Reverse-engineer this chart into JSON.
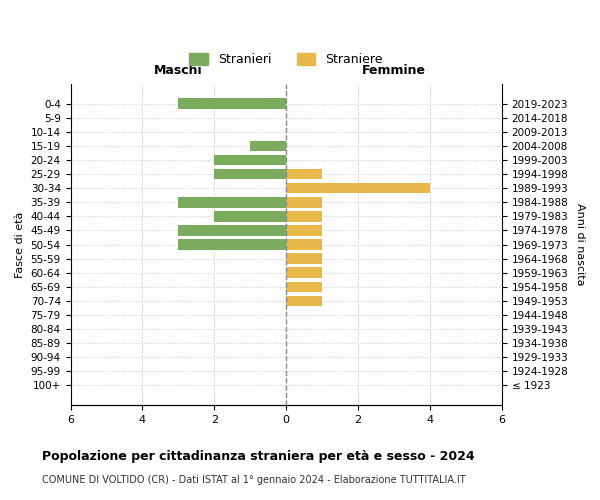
{
  "age_groups": [
    "100+",
    "95-99",
    "90-94",
    "85-89",
    "80-84",
    "75-79",
    "70-74",
    "65-69",
    "60-64",
    "55-59",
    "50-54",
    "45-49",
    "40-44",
    "35-39",
    "30-34",
    "25-29",
    "20-24",
    "15-19",
    "10-14",
    "5-9",
    "0-4"
  ],
  "birth_years": [
    "≤ 1923",
    "1924-1928",
    "1929-1933",
    "1934-1938",
    "1939-1943",
    "1944-1948",
    "1949-1953",
    "1954-1958",
    "1959-1963",
    "1964-1968",
    "1969-1973",
    "1974-1978",
    "1979-1983",
    "1984-1988",
    "1989-1993",
    "1994-1998",
    "1999-2003",
    "2004-2008",
    "2009-2013",
    "2014-2018",
    "2019-2023"
  ],
  "maschi": [
    0,
    0,
    0,
    0,
    0,
    0,
    0,
    0,
    0,
    0,
    3,
    3,
    2,
    3,
    0,
    2,
    2,
    1,
    0,
    0,
    3
  ],
  "femmine": [
    0,
    0,
    0,
    0,
    0,
    0,
    1,
    1,
    1,
    1,
    1,
    1,
    1,
    1,
    4,
    1,
    0,
    0,
    0,
    0,
    0
  ],
  "maschi_color": "#7aab5e",
  "femmine_color": "#e8b84b",
  "title": "Popolazione per cittadinanza straniera per età e sesso - 2024",
  "subtitle": "COMUNE DI VOLTIDO (CR) - Dati ISTAT al 1° gennaio 2024 - Elaborazione TUTTITALIA.IT",
  "xlabel_left": "Maschi",
  "xlabel_right": "Femmine",
  "ylabel_left": "Fasce di età",
  "ylabel_right": "Anni di nascita",
  "legend_maschi": "Stranieri",
  "legend_femmine": "Straniere",
  "xlim": 6,
  "background_color": "#ffffff",
  "grid_color": "#cccccc"
}
